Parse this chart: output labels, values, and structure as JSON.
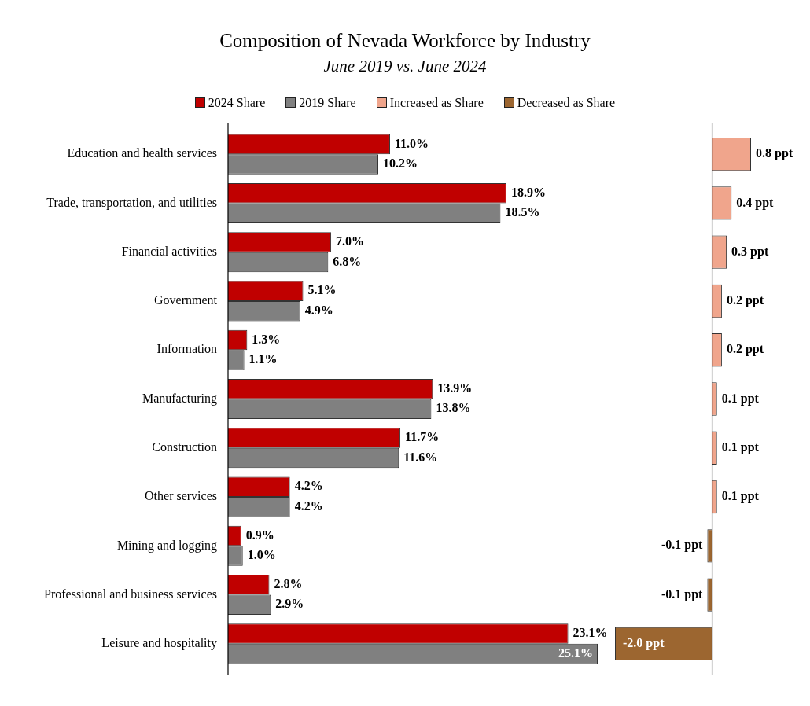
{
  "chart_data": [
    {
      "type": "bar",
      "orientation": "horizontal",
      "title": "Composition of Nevada Workforce by Industry",
      "subtitle": "June 2019 vs. June 2024",
      "legend": "top",
      "tick_labels": "y",
      "categories": [
        "Education and health services",
        "Trade, transportation, and utilities",
        "Financial activities",
        "Government",
        "Information",
        "Manufacturing",
        "Construction",
        "Other services",
        "Mining and logging",
        "Professional and business services",
        "Leisure and hospitality"
      ],
      "series": [
        {
          "name": "2024 Share",
          "color": "#c00000",
          "values": [
            11.0,
            18.9,
            7.0,
            5.1,
            1.3,
            13.9,
            11.7,
            4.2,
            0.9,
            2.8,
            23.1
          ],
          "value_labels": [
            "11.0%",
            "18.9%",
            "7.0%",
            "5.1%",
            "1.3%",
            "13.9%",
            "11.7%",
            "4.2%",
            "0.9%",
            "2.8%",
            "23.1%"
          ]
        },
        {
          "name": "2019 Share",
          "color": "#808080",
          "values": [
            10.2,
            18.5,
            6.8,
            4.9,
            1.1,
            13.8,
            11.6,
            4.2,
            1.0,
            2.9,
            25.1
          ],
          "value_labels": [
            "10.2%",
            "18.5%",
            "6.8%",
            "4.9%",
            "1.1%",
            "13.8%",
            "11.6%",
            "4.2%",
            "1.0%",
            "2.9%",
            "25.1%"
          ]
        }
      ]
    },
    {
      "type": "bar",
      "orientation": "horizontal",
      "stacked": true,
      "legend": "top",
      "tick_labels": false,
      "categories": [
        null,
        null,
        null,
        null,
        null,
        null,
        null,
        null,
        null,
        null,
        null
      ],
      "series": [
        {
          "name": "Increased as Share",
          "color": "#f0a58c",
          "values": [
            0.8,
            0.4,
            0.3,
            0.2,
            0.2,
            0.1,
            0.1,
            0.1,
            null,
            null,
            null
          ],
          "value_labels": [
            "0.8 ppt",
            "0.4 ppt",
            "0.3 ppt",
            "0.2 ppt",
            "0.2 ppt",
            "0.1 ppt",
            "0.1 ppt",
            "0.1 ppt",
            null,
            null,
            null
          ]
        },
        {
          "name": "Decreased as Share",
          "color": "#9c6630",
          "values": [
            null,
            null,
            null,
            null,
            null,
            null,
            null,
            null,
            -0.1,
            -0.1,
            -2.0
          ],
          "value_labels": [
            null,
            null,
            null,
            null,
            null,
            null,
            null,
            null,
            "-0.1 ppt",
            "-0.1 ppt",
            "-2.0 ppt"
          ]
        }
      ]
    }
  ]
}
